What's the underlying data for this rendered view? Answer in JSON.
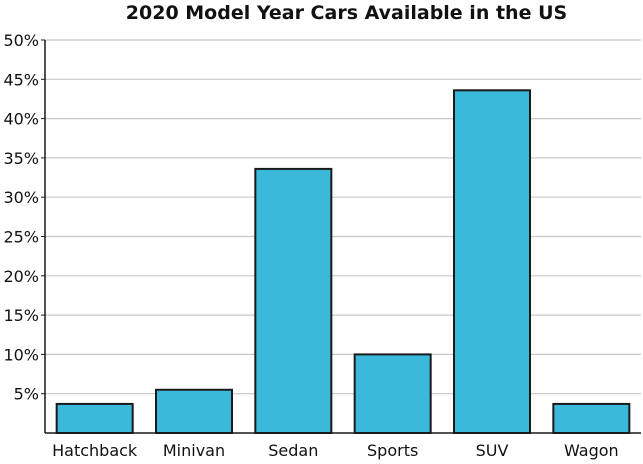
{
  "chart_data": {
    "type": "bar",
    "title": "2020 Model Year Cars Available in the US",
    "xlabel": "",
    "ylabel": "",
    "categories": [
      "Hatchback",
      "Minivan",
      "Sedan",
      "Sports",
      "SUV",
      "Wagon"
    ],
    "values": [
      3.7,
      5.5,
      33.6,
      10.0,
      43.6,
      3.7
    ],
    "ylim": [
      0,
      50
    ],
    "yticks": [
      "5%",
      "10%",
      "15%",
      "20%",
      "25%",
      "30%",
      "35%",
      "40%",
      "45%",
      "50%"
    ],
    "ytick_values": [
      5,
      10,
      15,
      20,
      25,
      30,
      35,
      40,
      45,
      50
    ],
    "grid": true,
    "legend": "none",
    "colors": {
      "bar_fill": "#3bb9db",
      "bar_stroke": "#1a1a1a",
      "grid": "#c8c8c8",
      "axis": "#1a1a1a"
    }
  }
}
